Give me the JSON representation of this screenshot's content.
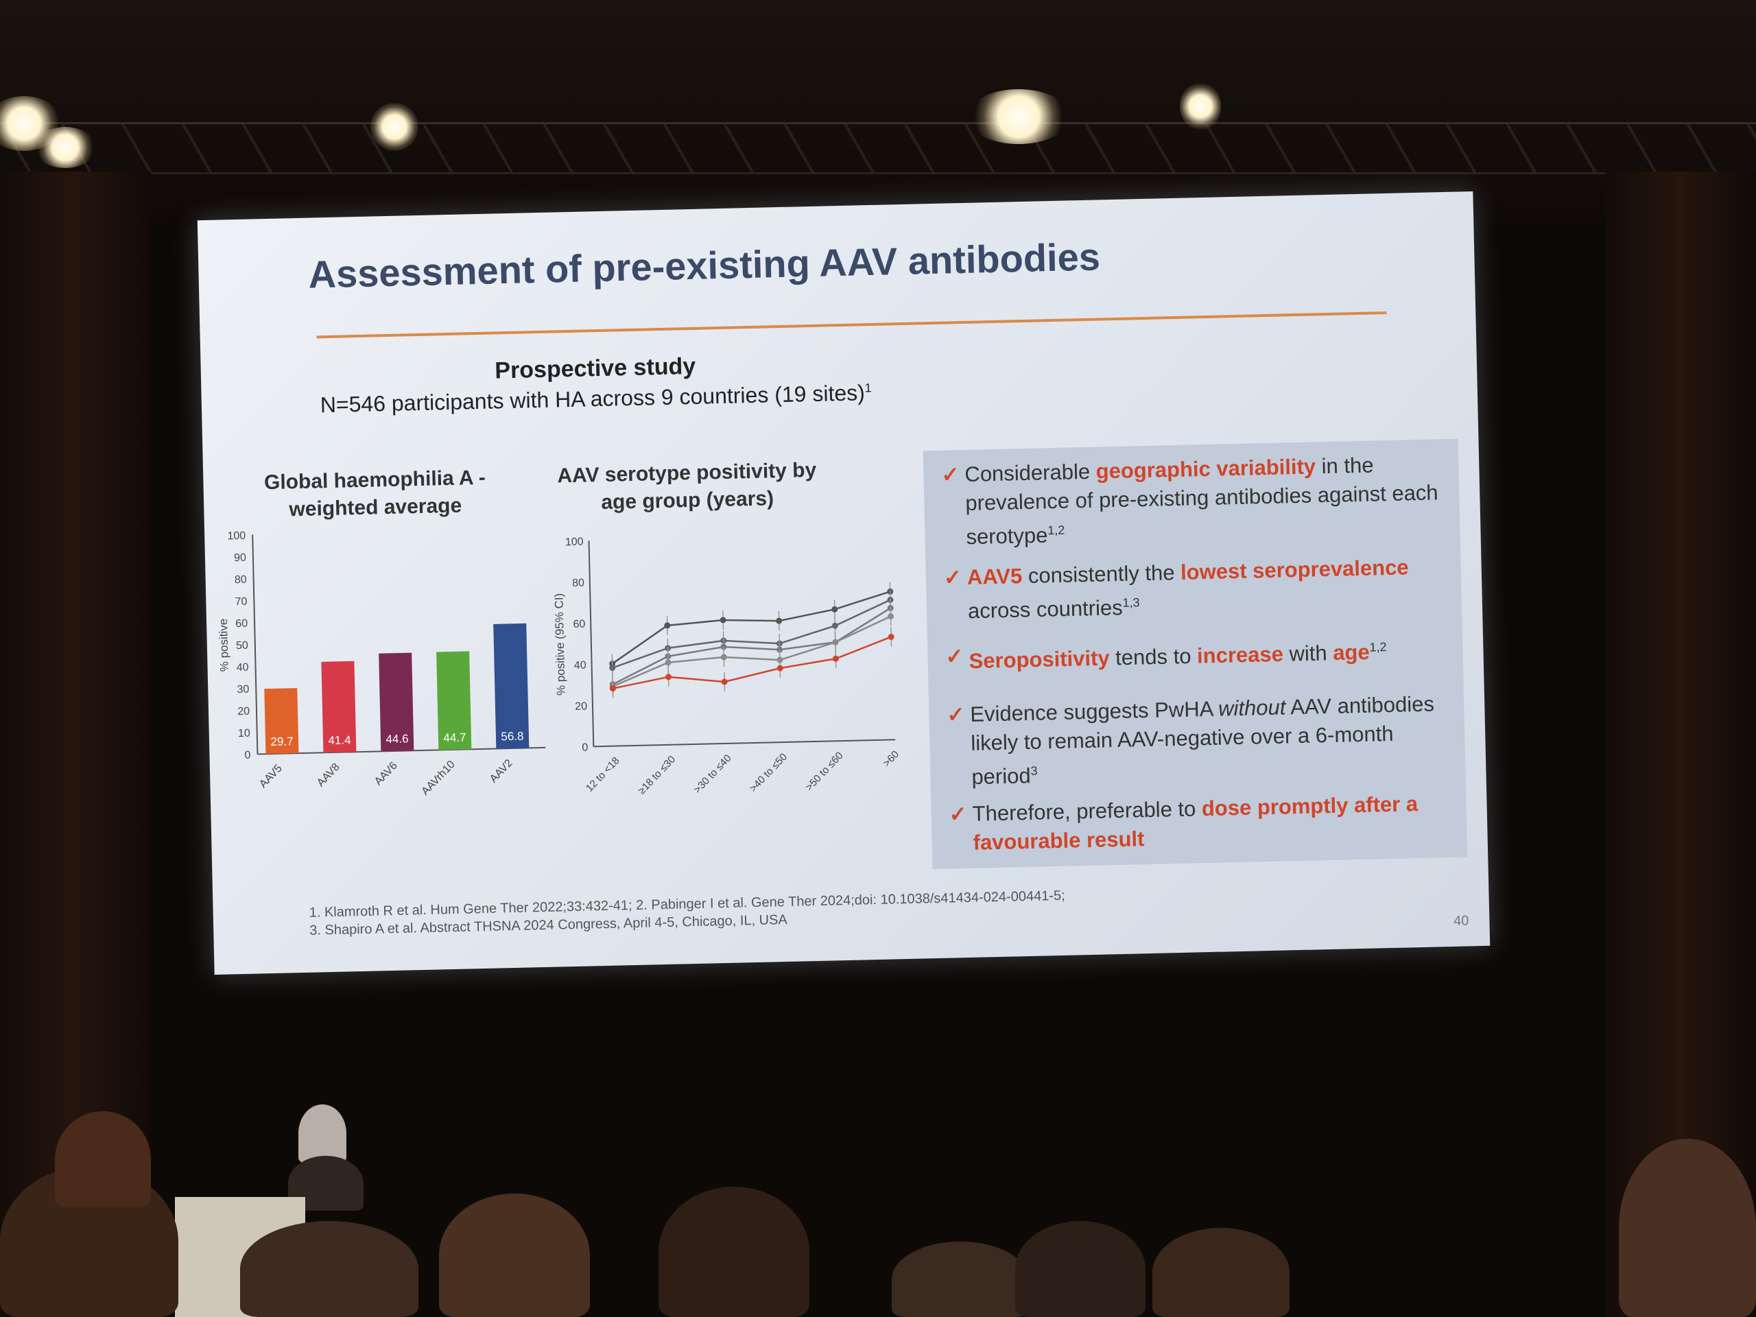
{
  "slide": {
    "title": "Assessment of pre-existing AAV antibodies",
    "study_heading": "Prospective study",
    "study_subheading": "N=546 participants with HA across 9 countries (19 sites)",
    "study_sup": "1",
    "page_number": "40"
  },
  "bullets": [
    {
      "parts": [
        {
          "t": "Considerable ",
          "hl": false
        },
        {
          "t": "geographic variability",
          "hl": true
        },
        {
          "t": " in the prevalence of pre-existing antibodies against each serotype",
          "hl": false
        }
      ],
      "sup": "1,2"
    },
    {
      "parts": [
        {
          "t": "AAV5",
          "hl": true
        },
        {
          "t": " consistently the ",
          "hl": false
        },
        {
          "t": "lowest seroprevalence",
          "hl": true
        },
        {
          "t": " across countries",
          "hl": false
        }
      ],
      "sup": "1,3"
    },
    {
      "parts": [
        {
          "t": "Seropositivity",
          "hl": true
        },
        {
          "t": " tends to ",
          "hl": false
        },
        {
          "t": "increase",
          "hl": true
        },
        {
          "t": " with ",
          "hl": false
        },
        {
          "t": "age",
          "hl": true
        }
      ],
      "sup": "1,2"
    },
    {
      "parts": [
        {
          "t": "Evidence suggests PwHA ",
          "hl": false
        },
        {
          "t": "without",
          "hl": false,
          "it": true
        },
        {
          "t": " AAV antibodies likely to remain AAV-negative over a 6-month period",
          "hl": false
        }
      ],
      "sup": "3"
    },
    {
      "parts": [
        {
          "t": "Therefore, preferable to ",
          "hl": false
        },
        {
          "t": "dose promptly after a favourable result",
          "hl": true
        }
      ],
      "sup": ""
    }
  ],
  "references": [
    "1. Klamroth R et al. Hum Gene Ther 2022;33:432-41; 2. Pabinger I et al. Gene Ther 2024;doi: 10.1038/s41434-024-00441-5;",
    "3. Shapiro A et al. Abstract THSNA 2024 Congress, April 4-5, Chicago, IL, USA"
  ],
  "chart_data": [
    {
      "type": "bar",
      "title": "Global haemophilia A - weighted average",
      "ylabel": "% positive",
      "xlabel": "",
      "ylim": [
        0,
        100
      ],
      "yticks": [
        0,
        10,
        20,
        30,
        40,
        50,
        60,
        70,
        80,
        90,
        100
      ],
      "categories": [
        "AAV5",
        "AAV8",
        "AAV6",
        "AAVrh10",
        "AAV2"
      ],
      "values": [
        29.7,
        41.4,
        44.6,
        44.7,
        56.8
      ],
      "colors": [
        "#e0622b",
        "#d63a48",
        "#7a2a52",
        "#5aa83a",
        "#2f4f8f"
      ]
    },
    {
      "type": "line",
      "title": "AAV serotype positivity by age group (years)",
      "ylabel": "% positive (95% CI)",
      "xlabel": "",
      "ylim": [
        0,
        100
      ],
      "yticks": [
        0,
        20,
        40,
        60,
        80,
        100
      ],
      "categories": [
        "12 to <18",
        "≥18 to ≤30",
        ">30 to ≤40",
        ">40 to ≤50",
        ">50 to ≤60",
        ">60"
      ],
      "series": [
        {
          "values": [
            40,
            58,
            60,
            59,
            64,
            72
          ],
          "color": "#555555"
        },
        {
          "values": [
            38,
            47,
            50,
            48,
            56,
            68
          ],
          "color": "#666666"
        },
        {
          "values": [
            30,
            43,
            47,
            45,
            48,
            64
          ],
          "color": "#7a7a7a"
        },
        {
          "values": [
            29,
            40,
            42,
            40,
            48,
            60
          ],
          "color": "#8a8a8a"
        },
        {
          "values": [
            28,
            33,
            30,
            36,
            40,
            50
          ],
          "color": "#d0452a"
        }
      ]
    }
  ]
}
